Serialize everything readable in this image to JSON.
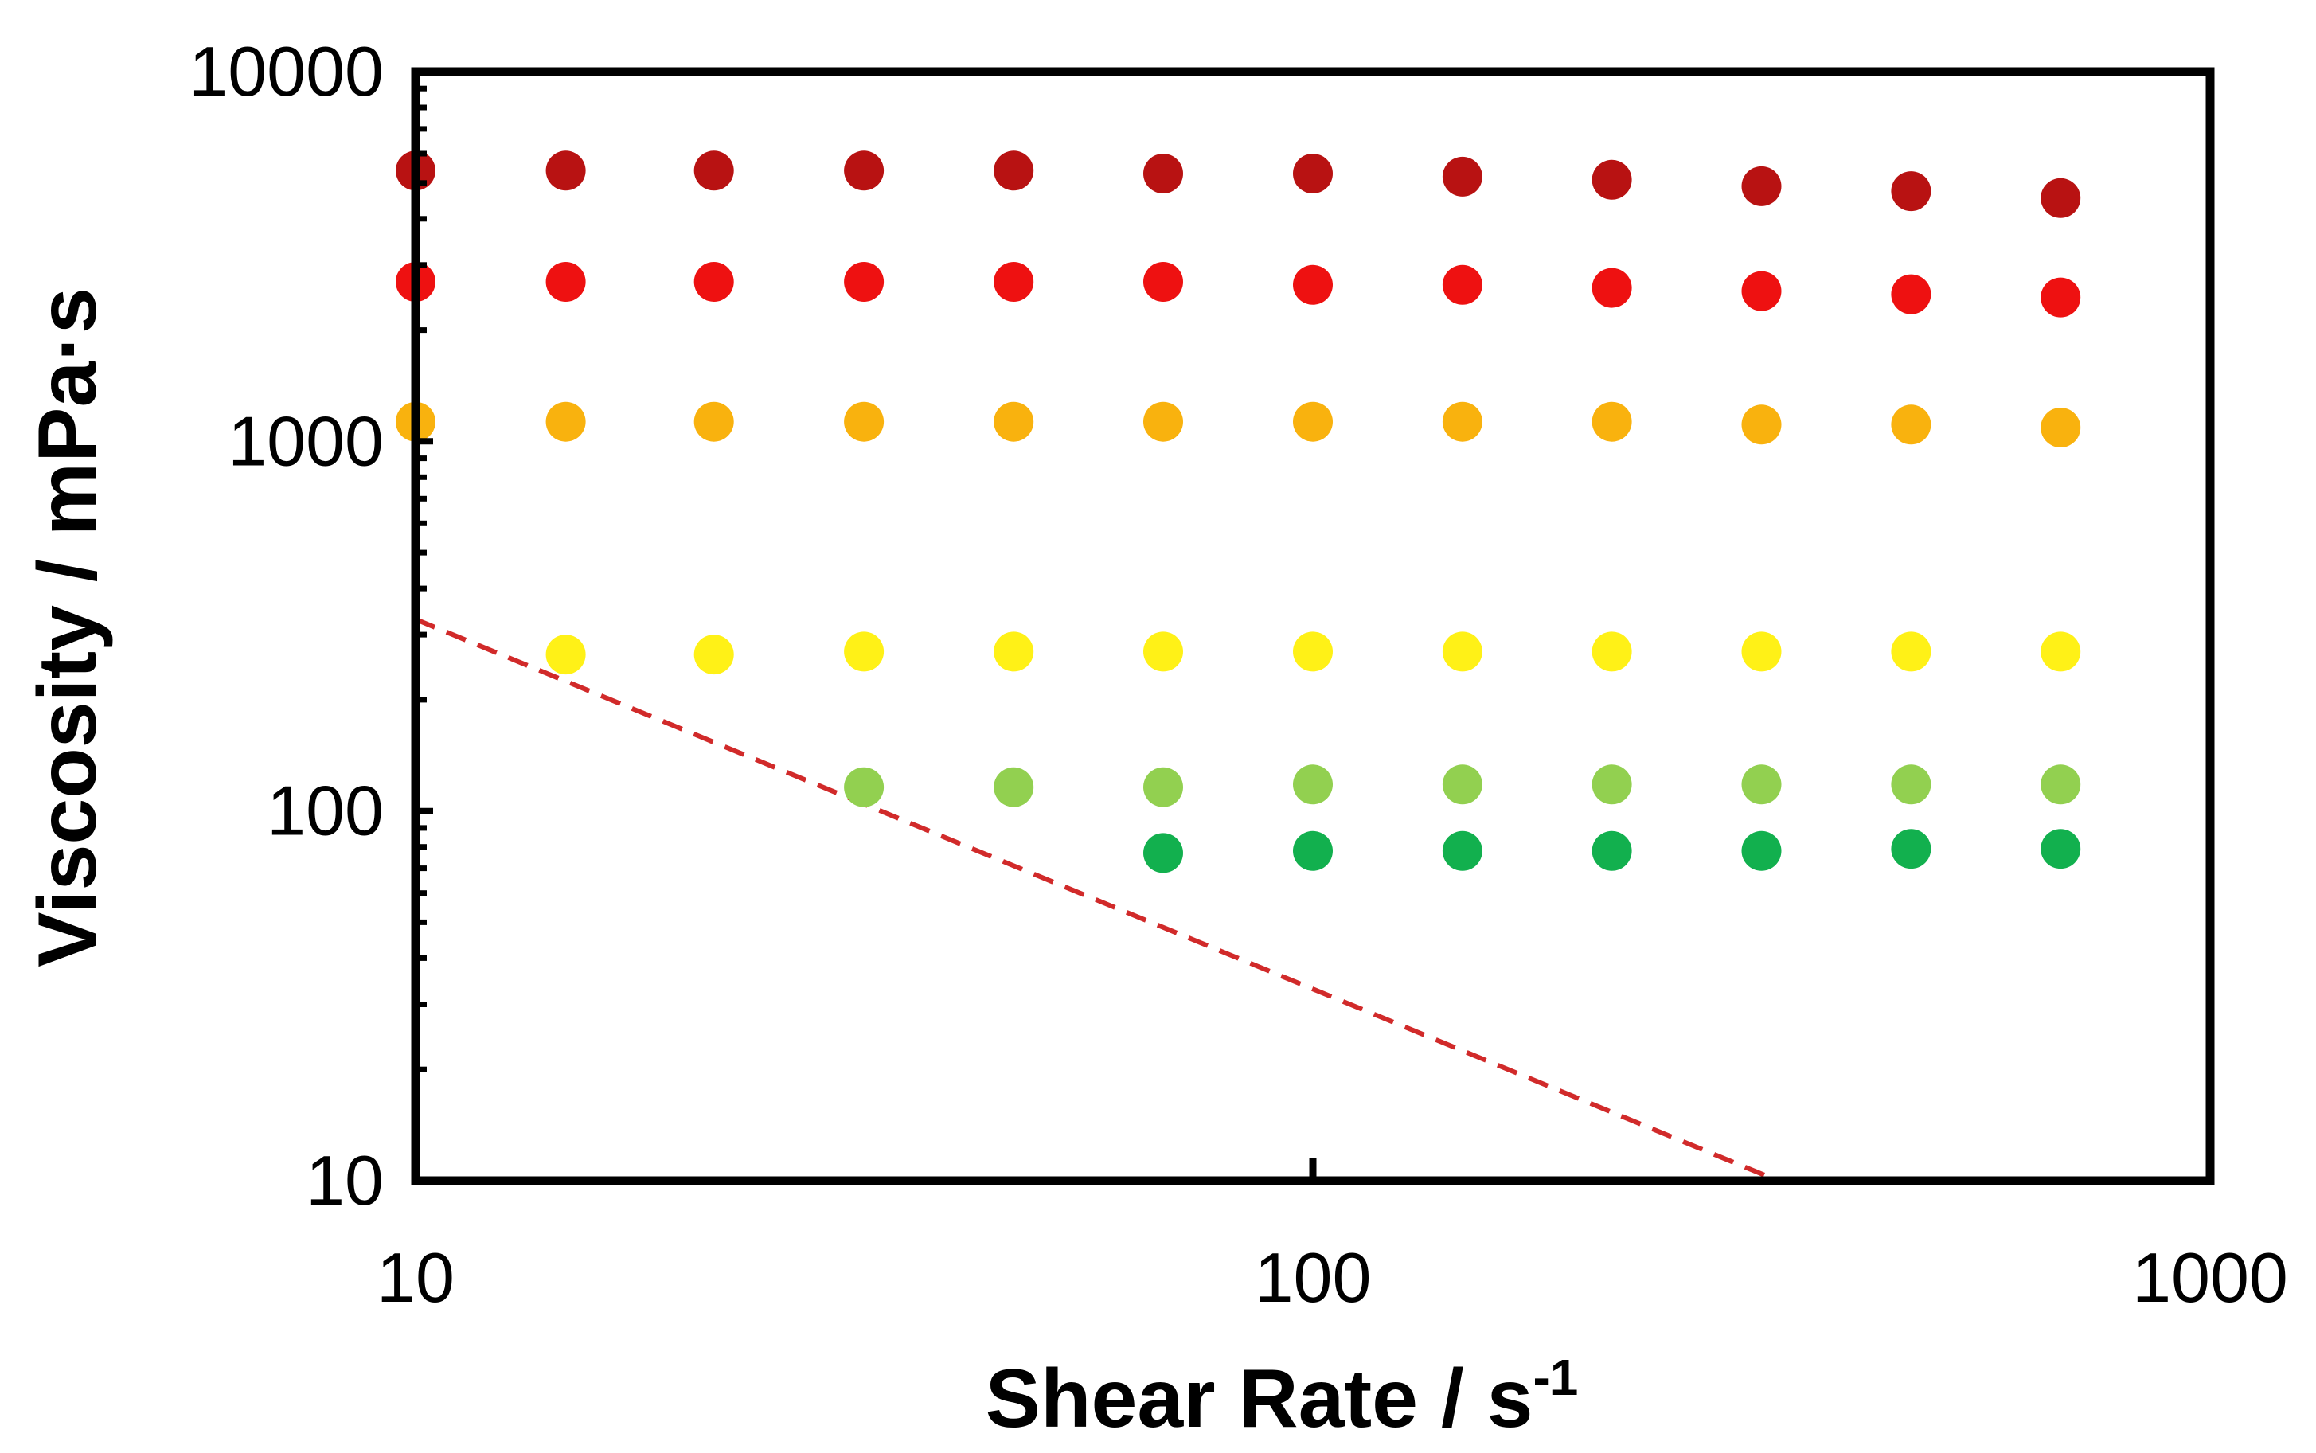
{
  "chart_data": {
    "type": "scatter",
    "title": "",
    "xlabel": "Shear Rate / s",
    "xlabel_superscript": "-1",
    "ylabel": "Viscosity / mPa·s",
    "x_scale": "log",
    "y_scale": "log",
    "xlim": [
      10,
      1000
    ],
    "ylim": [
      10,
      10000
    ],
    "x_ticks": [
      10,
      100,
      1000
    ],
    "y_ticks": [
      10,
      100,
      1000,
      10000
    ],
    "x_tick_labels": [
      "10",
      "100",
      "1000"
    ],
    "y_tick_labels": [
      "10",
      "100",
      "1000",
      "10000"
    ],
    "grid": false,
    "legend": "none",
    "series": [
      {
        "name": "series-1",
        "color": "#B81212",
        "x": [
          10,
          14.7,
          21.5,
          31.6,
          46.4,
          68.1,
          100,
          146.8,
          215.4,
          316.2,
          464.2,
          681.3
        ],
        "y": [
          5400,
          5400,
          5400,
          5400,
          5400,
          5300,
          5300,
          5200,
          5100,
          4900,
          4750,
          4550
        ]
      },
      {
        "name": "series-2",
        "color": "#EE1111",
        "x": [
          10,
          14.7,
          21.5,
          31.6,
          46.4,
          68.1,
          100,
          146.8,
          215.4,
          316.2,
          464.2,
          681.3
        ],
        "y": [
          2700,
          2700,
          2700,
          2700,
          2700,
          2700,
          2650,
          2650,
          2600,
          2550,
          2500,
          2450
        ]
      },
      {
        "name": "series-3",
        "color": "#F9B20E",
        "x": [
          10,
          14.7,
          21.5,
          31.6,
          46.4,
          68.1,
          100,
          146.8,
          215.4,
          316.2,
          464.2,
          681.3
        ],
        "y": [
          1130,
          1130,
          1130,
          1130,
          1130,
          1130,
          1130,
          1130,
          1130,
          1110,
          1110,
          1090
        ]
      },
      {
        "name": "series-4",
        "color": "#FFF117",
        "x": [
          14.7,
          21.5,
          31.6,
          46.4,
          68.1,
          100,
          146.8,
          215.4,
          316.2,
          464.2,
          681.3
        ],
        "y": [
          265,
          265,
          270,
          270,
          270,
          270,
          270,
          270,
          270,
          270,
          270
        ]
      },
      {
        "name": "series-5",
        "color": "#92D050",
        "x": [
          31.6,
          46.4,
          68.1,
          100,
          146.8,
          215.4,
          316.2,
          464.2,
          681.3
        ],
        "y": [
          116,
          116,
          116,
          118,
          118,
          118,
          118,
          118,
          118
        ]
      },
      {
        "name": "series-6",
        "color": "#12B04E",
        "x": [
          68.1,
          100,
          146.8,
          215.4,
          316.2,
          464.2,
          681.3
        ],
        "y": [
          77,
          78,
          78,
          78,
          78,
          79,
          79
        ]
      }
    ],
    "reference_line": {
      "name": "dashed-reference-line",
      "color": "#D12A2A",
      "style": "dashed",
      "x": [
        10,
        330
      ],
      "y": [
        330,
        10
      ]
    }
  }
}
